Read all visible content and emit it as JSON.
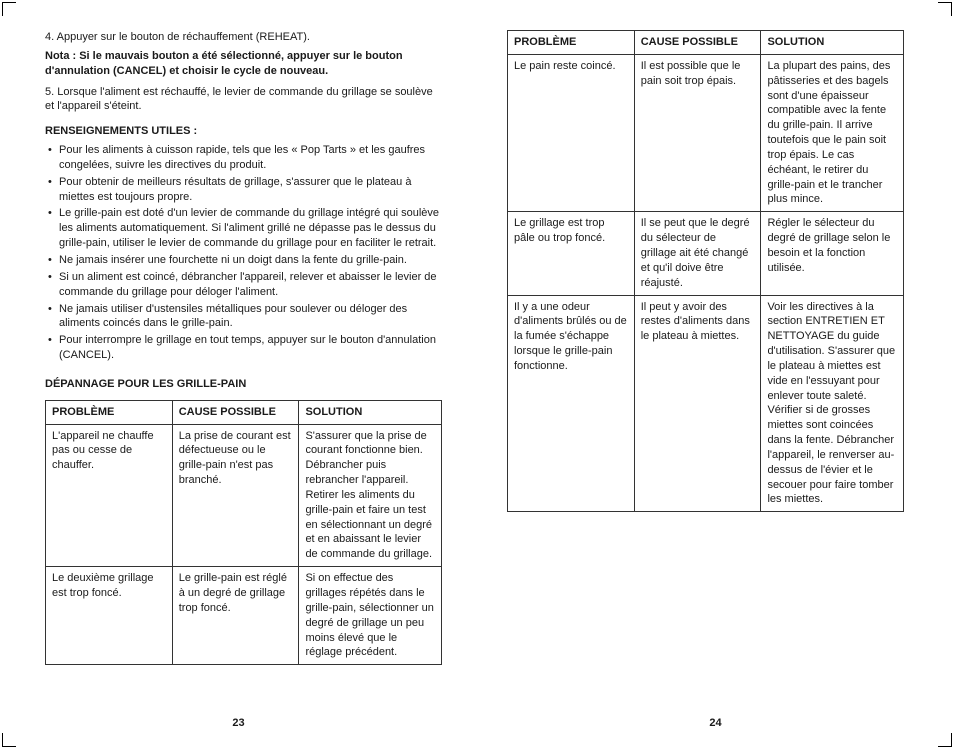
{
  "left": {
    "step4": "4.  Appuyer sur le bouton de réchauffement (REHEAT).",
    "nota": "Nota : Si le mauvais bouton a été sélectionné, appuyer sur le bouton d'annulation (CANCEL) et choisir le cycle de nouveau.",
    "step5": "5.  Lorsque l'aliment est réchauffé, le levier de commande du grillage se soulève et l'appareil s'éteint.",
    "h_useful": "RENSEIGNEMENTS UTILES :",
    "tips": [
      "Pour les aliments à cuisson rapide, tels que les « Pop Tarts » et les gaufres congelées, suivre les directives du produit.",
      "Pour obtenir de meilleurs résultats de grillage, s'assurer que le plateau à miettes est toujours propre.",
      "Le grille-pain est doté d'un levier de commande du grillage intégré qui soulève les aliments automatiquement. Si l'aliment grillé ne dépasse pas le dessus du grille-pain, utiliser le levier de commande du grillage pour en faciliter le retrait.",
      "Ne jamais insérer une fourchette ni un doigt dans la fente du grille-pain.",
      "Si un aliment est coincé, débrancher l'appareil, relever et abaisser le levier de commande du grillage pour déloger l'aliment.",
      "Ne jamais utiliser d'ustensiles métalliques pour soulever ou déloger des aliments coincés dans le grille-pain.",
      "Pour interrompre le grillage en tout temps, appuyer sur le bouton d'annulation (CANCEL)."
    ],
    "h_troubleshoot": "DÉPANNAGE POUR LES GRILLE-PAIN",
    "table": {
      "headers": [
        "PROBLÈME",
        "CAUSE POSSIBLE",
        "SOLUTION"
      ],
      "rows": [
        [
          "L'appareil ne chauffe pas ou cesse de chauffer.",
          "La prise de courant est défectueuse ou le grille-pain n'est pas branché.",
          "S'assurer que la prise de courant fonctionne bien. Débrancher puis rebrancher l'appareil. Retirer les aliments du grille-pain et faire un test en sélectionnant un degré et en abaissant le levier de commande du grillage."
        ],
        [
          "Le deuxième grillage est trop foncé.",
          "Le grille-pain est réglé à un degré de grillage trop foncé.",
          "Si on effectue des grillages répétés dans le grille-pain, sélectionner un degré de grillage un peu moins élevé que le réglage précédent."
        ]
      ]
    },
    "pagenum": "23"
  },
  "right": {
    "table": {
      "headers": [
        "PROBLÈME",
        "CAUSE POSSIBLE",
        "SOLUTION"
      ],
      "rows": [
        [
          "Le pain reste coincé.",
          "Il est possible que le pain soit trop épais.",
          "La plupart des pains, des pâtisseries et des bagels sont d'une épaisseur compatible avec la fente du grille-pain. Il arrive toutefois que le pain soit trop épais. Le cas échéant, le retirer du grille-pain et le trancher plus mince."
        ],
        [
          "Le grillage est trop pâle ou trop foncé.",
          "Il se peut que le degré du sélecteur de grillage ait été changé et qu'il doive être réajusté.",
          "Régler le sélecteur du degré de grillage selon le besoin et la fonction utilisée."
        ],
        [
          "Il y a une odeur d'aliments brûlés ou de la fumée s'échappe lorsque le grille-pain fonctionne.",
          "Il peut y avoir des restes d'aliments dans le plateau à miettes.",
          "Voir les directives à la section ENTRETIEN ET NETTOYAGE du guide d'utilisation. S'assurer que le plateau à miettes est vide en l'essuyant pour enlever toute saleté. Vérifier si de grosses miettes sont coincées dans la fente. Débrancher l'appareil, le renverser au-dessus de l'évier et le secouer pour faire tomber les miettes."
        ]
      ]
    },
    "pagenum": "24"
  }
}
